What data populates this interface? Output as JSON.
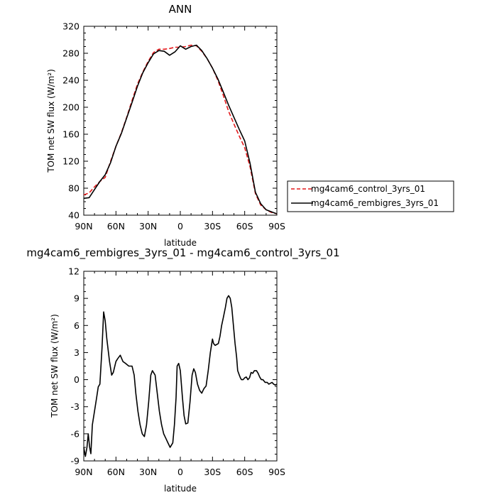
{
  "chart_data": [
    {
      "type": "line",
      "title": "ANN",
      "xlabel": "latitude",
      "ylabel": "TOM net SW flux (W/m²)",
      "xlim": [
        90,
        -90
      ],
      "ylim": [
        40,
        320
      ],
      "yticks": [
        40,
        80,
        120,
        160,
        200,
        240,
        280,
        320
      ],
      "xticks": [
        90,
        60,
        30,
        0,
        -30,
        -60,
        -90
      ],
      "xtick_labels": [
        "90N",
        "60N",
        "30N",
        "0",
        "30S",
        "60S",
        "90S"
      ],
      "legend": "right",
      "series": [
        {
          "name": "mg4cam6_control_3yrs_01",
          "color": "#e41a1c",
          "dash": "dashed",
          "x": [
            90,
            85,
            80,
            75,
            70,
            65,
            60,
            55,
            50,
            45,
            40,
            35,
            30,
            25,
            20,
            15,
            10,
            5,
            0,
            -5,
            -10,
            -15,
            -20,
            -25,
            -30,
            -35,
            -40,
            -45,
            -50,
            -55,
            -60,
            -65,
            -70,
            -75,
            -80,
            -85,
            -90
          ],
          "y": [
            70,
            73,
            82,
            90,
            96,
            120,
            142,
            162,
            185,
            210,
            234,
            252,
            268,
            281,
            286,
            286,
            287,
            289,
            289,
            290,
            292,
            291,
            283,
            272,
            258,
            240,
            218,
            194,
            175,
            157,
            140,
            112,
            72,
            55,
            48,
            44,
            42
          ]
        },
        {
          "name": "mg4cam6_rembigres_3yrs_01",
          "color": "#000000",
          "dash": "solid",
          "x": [
            90,
            85,
            80,
            75,
            70,
            65,
            60,
            55,
            50,
            45,
            40,
            35,
            30,
            25,
            20,
            15,
            10,
            5,
            0,
            -5,
            -10,
            -15,
            -20,
            -25,
            -30,
            -35,
            -40,
            -45,
            -50,
            -55,
            -60,
            -65,
            -70,
            -75,
            -80,
            -85,
            -90
          ],
          "y": [
            65,
            66,
            78,
            90,
            100,
            118,
            142,
            161,
            184,
            207,
            231,
            251,
            266,
            279,
            284,
            283,
            277,
            282,
            291,
            286,
            290,
            292,
            284,
            272,
            258,
            242,
            223,
            203,
            185,
            167,
            150,
            117,
            74,
            57,
            48,
            45,
            42
          ]
        }
      ]
    },
    {
      "type": "line",
      "title": "mg4cam6_rembigres_3yrs_01 - mg4cam6_control_3yrs_01",
      "xlabel": "latitude",
      "ylabel": "TOM net SW flux (W/m²)",
      "xlim": [
        90,
        -90
      ],
      "ylim": [
        -9,
        12
      ],
      "yticks": [
        -9,
        -6,
        -3,
        0,
        3,
        6,
        9,
        12
      ],
      "xticks": [
        90,
        60,
        30,
        0,
        -30,
        -60,
        -90
      ],
      "xtick_labels": [
        "90N",
        "60N",
        "30N",
        "0",
        "30S",
        "60S",
        "90S"
      ],
      "series": [
        {
          "color": "#000000",
          "x": [
            90,
            88.5,
            87,
            85.8,
            84.5,
            83.4,
            82,
            80,
            78,
            76.5,
            75,
            73,
            71.5,
            70,
            68.5,
            66,
            64,
            62.5,
            60,
            58.5,
            56,
            53.5,
            51,
            48,
            45,
            43,
            41.5,
            39.5,
            37.5,
            35.5,
            33.5,
            31.5,
            29.5,
            27.5,
            26,
            23.5,
            21.5,
            19.5,
            17.5,
            15.5,
            13.5,
            11.5,
            9.5,
            7,
            5.5,
            4,
            3,
            1.5,
            0,
            -2,
            -3.5,
            -5,
            -7,
            -9,
            -11,
            -12.5,
            -14,
            -16,
            -18,
            -20,
            -22,
            -24,
            -26,
            -28,
            -30,
            -31,
            -32.5,
            -34,
            -35.5,
            -37,
            -38.5,
            -40,
            -42,
            -43.5,
            -45,
            -46.5,
            -48,
            -49.5,
            -51,
            -52.5,
            -53.5,
            -55,
            -56,
            -57,
            -58.5,
            -60,
            -61.5,
            -63,
            -64.5,
            -66,
            -67.5,
            -69,
            -71,
            -72.5,
            -74,
            -75.5,
            -77,
            -79,
            -81,
            -82.5,
            -84,
            -85.5,
            -87,
            -88.5,
            -90
          ],
          "y": [
            -7.5,
            -8.5,
            -7.5,
            -6.0,
            -7.5,
            -8.2,
            -5.0,
            -3.5,
            -2.0,
            -0.8,
            -0.5,
            3.5,
            7.5,
            6.5,
            4.5,
            2.0,
            0.5,
            0.8,
            2.0,
            2.3,
            2.7,
            2.0,
            1.8,
            1.5,
            1.5,
            0.5,
            -1.5,
            -3.5,
            -5.0,
            -6.0,
            -6.3,
            -5.0,
            -2.5,
            0.5,
            1.0,
            0.5,
            -1.5,
            -3.5,
            -5.0,
            -6.0,
            -6.5,
            -7.0,
            -7.5,
            -7.0,
            -5.0,
            -2.0,
            1.5,
            1.8,
            1.0,
            -2.0,
            -4.0,
            -4.9,
            -4.8,
            -2.5,
            0.5,
            1.2,
            0.8,
            -0.5,
            -1.2,
            -1.5,
            -1.0,
            -0.7,
            1.0,
            3.0,
            4.5,
            4.0,
            3.8,
            3.9,
            4.0,
            4.8,
            6.0,
            6.8,
            8.0,
            9.0,
            9.3,
            9.0,
            8.0,
            6.0,
            4.0,
            2.5,
            1.0,
            0.5,
            0.2,
            0.0,
            0.0,
            0.2,
            0.3,
            0.0,
            0.2,
            0.8,
            0.7,
            1.0,
            1.0,
            0.7,
            0.3,
            0.0,
            0.0,
            -0.3,
            -0.3,
            -0.5,
            -0.4,
            -0.3,
            -0.5,
            -0.6,
            -0.5
          ]
        }
      ]
    }
  ]
}
